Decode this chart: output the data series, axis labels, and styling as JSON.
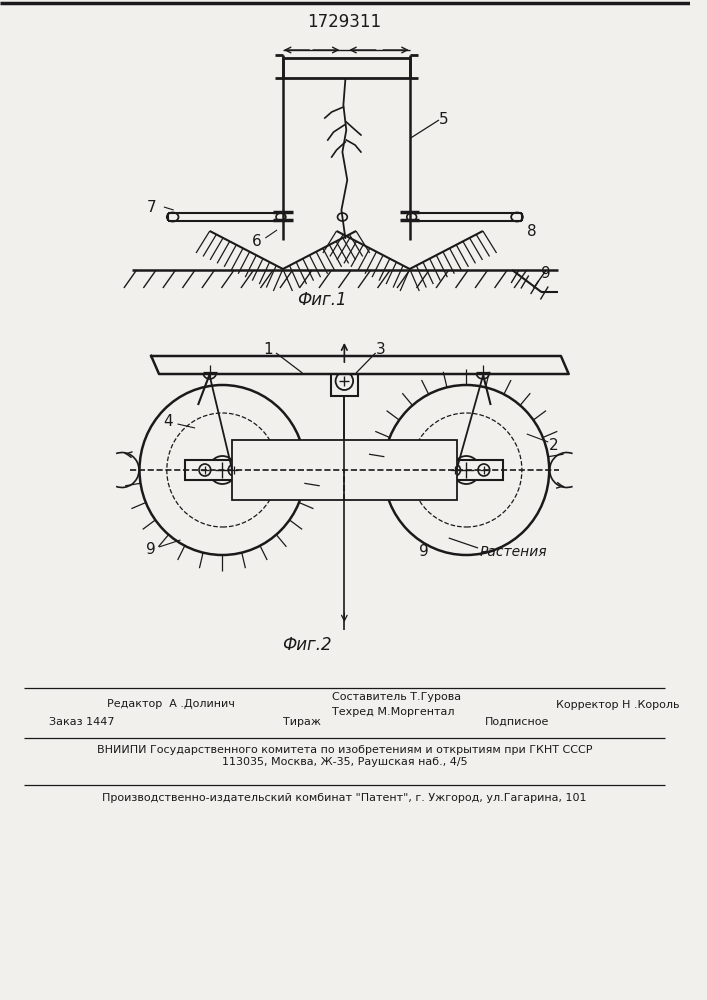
{
  "title": "1729311",
  "fig1_caption": "Фиг.1",
  "fig2_caption": "Фиг.2",
  "editor_line": "Редактор  А .Долинич",
  "composer_line1": "Составитель Т.Гурова",
  "composer_line2": "Техред М.Моргентал",
  "corrector_line": "Корректор Н .Король",
  "order_line": "Заказ 1447",
  "tirazh_line": "Тираж",
  "podpisnoe_line": "Подписное",
  "vniip_line": "ВНИИПИ Государственного комитета по изобретениям и открытиям при ГКНТ СССР",
  "address_line": "113035, Москва, Ж-35, Раушская наб., 4/5",
  "factory_line": "Производственно-издательский комбинат \"Патент\", г. Ужгород, ул.Гагарина, 101",
  "bg_color": "#f2f0ed",
  "line_color": "#1a1a1a"
}
